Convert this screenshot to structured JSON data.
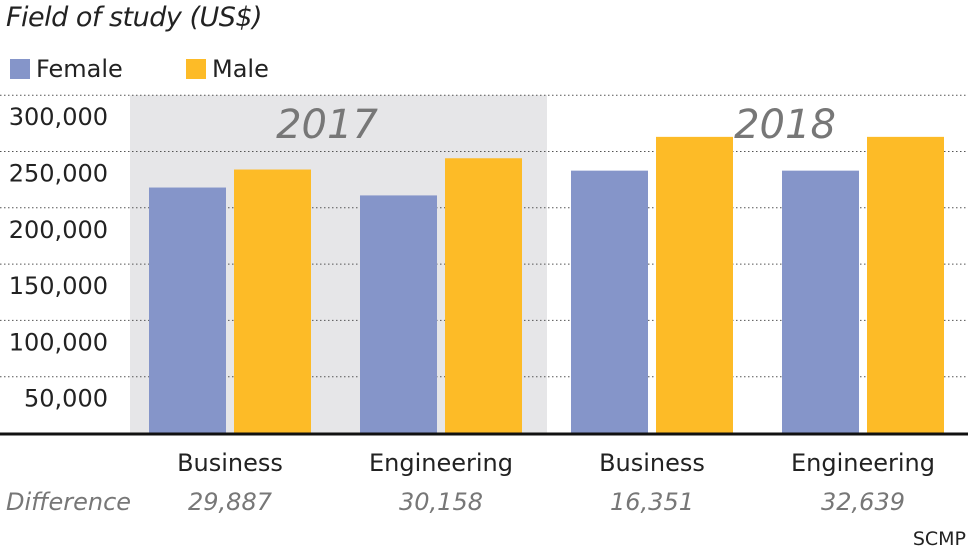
{
  "chart_data": {
    "type": "bar",
    "title": "Field of study (US$)",
    "groups": [
      "2017",
      "2017",
      "2018",
      "2018"
    ],
    "group_labels": [
      "2017",
      "2018"
    ],
    "categories": [
      "Business",
      "Engineering",
      "Business",
      "Engineering"
    ],
    "series": [
      {
        "name": "Female",
        "color": "#8595c9",
        "values": [
          218000,
          211000,
          233000,
          233000
        ]
      },
      {
        "name": "Male",
        "color": "#fdbb27",
        "values": [
          234000,
          244000,
          263000,
          263000
        ]
      }
    ],
    "difference_label": "Difference",
    "differences": [
      "29,887",
      "30,158",
      "16,351",
      "32,639"
    ],
    "yticks": [
      "50,000",
      "100,000",
      "150,000",
      "200,000",
      "250,000",
      "300,000"
    ],
    "ylim": [
      0,
      300000
    ],
    "grid": true,
    "legend": "top-left",
    "highlight_color": "#e6e6e8",
    "source": "SCMP"
  }
}
